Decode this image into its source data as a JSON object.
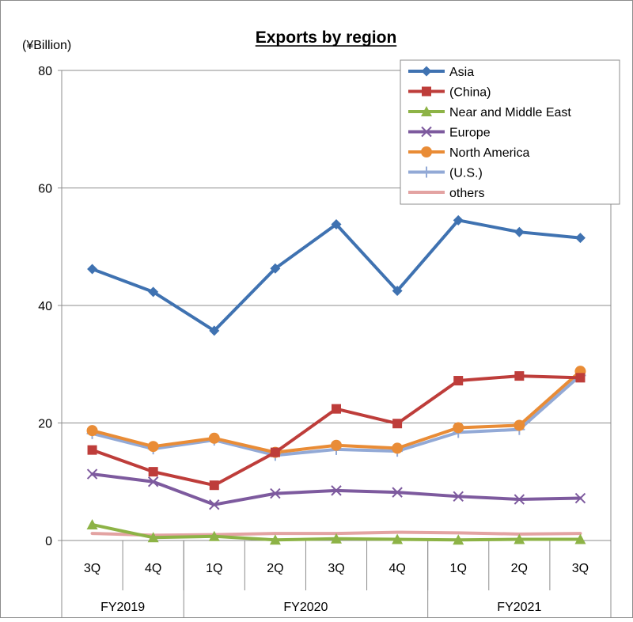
{
  "chart_data": {
    "type": "line",
    "title": "Exports by region",
    "unit_label": "(¥Billion)",
    "ylim": [
      0,
      80
    ],
    "yticks": [
      0,
      20,
      40,
      60,
      80
    ],
    "categories": [
      "3Q",
      "4Q",
      "1Q",
      "2Q",
      "3Q",
      "4Q",
      "1Q",
      "2Q",
      "3Q"
    ],
    "groups": [
      {
        "label": "FY2019",
        "span": 2
      },
      {
        "label": "FY2020",
        "span": 4
      },
      {
        "label": "FY2021",
        "span": 3
      }
    ],
    "legend_position": "top-right",
    "grid": "horizontal",
    "series": [
      {
        "name": "Asia",
        "color": "#3F72B1",
        "marker": "diamond",
        "values": [
          46.2,
          42.3,
          35.7,
          46.3,
          53.8,
          42.5,
          54.5,
          52.5,
          51.5
        ]
      },
      {
        "name": "(China)",
        "color": "#BE3D3A",
        "marker": "square",
        "values": [
          15.4,
          11.7,
          9.4,
          15.0,
          22.4,
          19.9,
          27.2,
          28.0,
          27.7
        ]
      },
      {
        "name": "Near and Middle East",
        "color": "#8DB346",
        "marker": "triangle",
        "values": [
          2.7,
          0.5,
          0.7,
          0.1,
          0.3,
          0.2,
          0.1,
          0.2,
          0.2
        ]
      },
      {
        "name": "Europe",
        "color": "#7D5A9E",
        "marker": "x",
        "values": [
          11.3,
          10.0,
          6.1,
          8.0,
          8.5,
          8.2,
          7.5,
          7.0,
          7.2
        ]
      },
      {
        "name": "North America",
        "color": "#E98C36",
        "marker": "circle",
        "values": [
          18.7,
          16.0,
          17.4,
          15.0,
          16.2,
          15.7,
          19.2,
          19.6,
          28.8
        ]
      },
      {
        "name": "(U.S.)",
        "color": "#92A9D6",
        "marker": "plus",
        "values": [
          18.2,
          15.6,
          17.1,
          14.5,
          15.5,
          15.2,
          18.4,
          18.9,
          28.1
        ]
      },
      {
        "name": "others",
        "color": "#E3A3A2",
        "marker": "none",
        "values": [
          1.2,
          0.9,
          1.0,
          1.2,
          1.2,
          1.4,
          1.3,
          1.1,
          1.2
        ]
      }
    ]
  }
}
